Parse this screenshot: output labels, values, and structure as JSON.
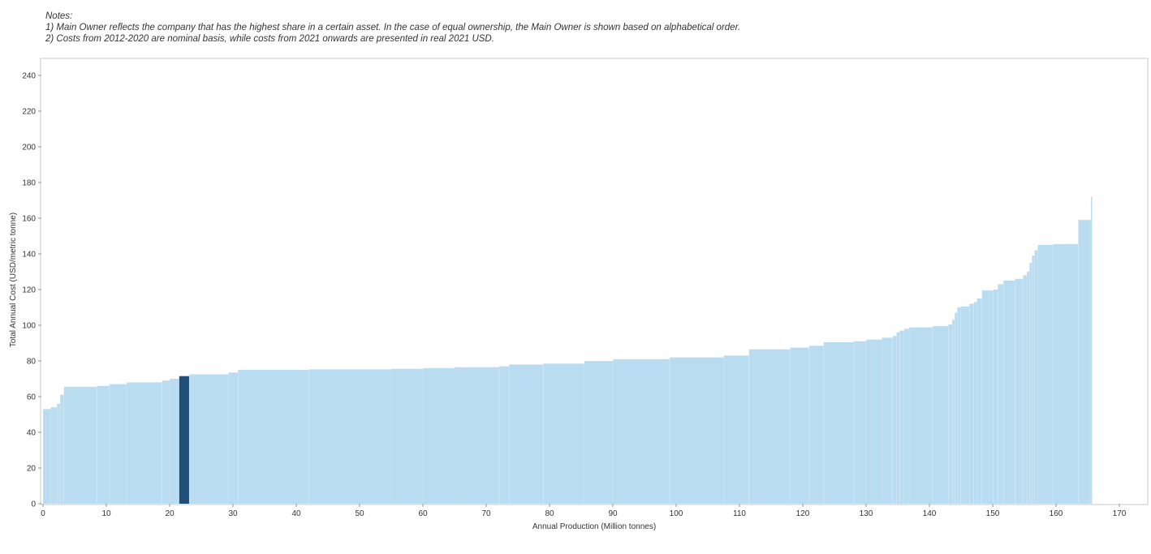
{
  "notes": {
    "heading": "Notes:",
    "line1": "1) Main Owner reflects the company that has the highest share in a certain asset. In the case of equal ownership, the Main Owner is shown based on alphabetical order.",
    "line2": "2) Costs from 2012-2020 are nominal basis, while costs from 2021 onwards are presented in real 2021 USD."
  },
  "chart_data": {
    "type": "bar",
    "subtype": "cost-curve",
    "xlabel": "Annual Production (Million tonnes)",
    "ylabel": "Total Annual Cost (USD/metric tonne)",
    "xlim": [
      0,
      175
    ],
    "ylim": [
      0,
      245
    ],
    "x_ticks": [
      0,
      10,
      20,
      30,
      40,
      50,
      60,
      70,
      80,
      90,
      100,
      110,
      120,
      130,
      140,
      150,
      160,
      170
    ],
    "y_ticks": [
      0,
      20,
      40,
      60,
      80,
      100,
      120,
      140,
      160,
      180,
      200,
      220,
      240
    ],
    "grid": false,
    "colors": {
      "default": "#b9dcf0",
      "highlight": "#1f4e79",
      "frame": "#c8c8c8"
    },
    "segments": [
      {
        "start": 0,
        "end": 1.2,
        "value": 53
      },
      {
        "start": 1.2,
        "end": 2.2,
        "value": 54
      },
      {
        "start": 2.2,
        "end": 2.7,
        "value": 56
      },
      {
        "start": 2.7,
        "end": 3.3,
        "value": 61
      },
      {
        "start": 3.3,
        "end": 8.5,
        "value": 65.5
      },
      {
        "start": 8.5,
        "end": 10.5,
        "value": 66
      },
      {
        "start": 10.5,
        "end": 13.2,
        "value": 67
      },
      {
        "start": 13.2,
        "end": 18.8,
        "value": 68
      },
      {
        "start": 18.8,
        "end": 20.0,
        "value": 69
      },
      {
        "start": 20.0,
        "end": 21.5,
        "value": 70
      },
      {
        "start": 21.5,
        "end": 23.1,
        "value": 71.5,
        "highlight": true
      },
      {
        "start": 23.1,
        "end": 29.3,
        "value": 72.5
      },
      {
        "start": 29.3,
        "end": 30.8,
        "value": 73.5
      },
      {
        "start": 30.8,
        "end": 42.0,
        "value": 75
      },
      {
        "start": 42.0,
        "end": 55.0,
        "value": 75.3
      },
      {
        "start": 55.0,
        "end": 60.0,
        "value": 75.6
      },
      {
        "start": 60.0,
        "end": 65.0,
        "value": 76
      },
      {
        "start": 65.0,
        "end": 72.0,
        "value": 76.5
      },
      {
        "start": 72.0,
        "end": 73.6,
        "value": 77
      },
      {
        "start": 73.6,
        "end": 79.0,
        "value": 78
      },
      {
        "start": 79.0,
        "end": 85.5,
        "value": 78.5
      },
      {
        "start": 85.5,
        "end": 90.0,
        "value": 80
      },
      {
        "start": 90.0,
        "end": 99.0,
        "value": 81
      },
      {
        "start": 99.0,
        "end": 107.5,
        "value": 82
      },
      {
        "start": 107.5,
        "end": 111.5,
        "value": 83
      },
      {
        "start": 111.5,
        "end": 118.0,
        "value": 86.5
      },
      {
        "start": 118.0,
        "end": 121.0,
        "value": 87.5
      },
      {
        "start": 121.0,
        "end": 123.3,
        "value": 88.5
      },
      {
        "start": 123.3,
        "end": 128.0,
        "value": 90.5
      },
      {
        "start": 128.0,
        "end": 130.0,
        "value": 91
      },
      {
        "start": 130.0,
        "end": 132.5,
        "value": 92
      },
      {
        "start": 132.5,
        "end": 134.2,
        "value": 93
      },
      {
        "start": 134.2,
        "end": 134.8,
        "value": 94
      },
      {
        "start": 134.8,
        "end": 135.3,
        "value": 96
      },
      {
        "start": 135.3,
        "end": 136.0,
        "value": 97
      },
      {
        "start": 136.0,
        "end": 136.8,
        "value": 98
      },
      {
        "start": 136.8,
        "end": 140.5,
        "value": 98.8
      },
      {
        "start": 140.5,
        "end": 143.0,
        "value": 99.5
      },
      {
        "start": 143.0,
        "end": 143.6,
        "value": 100.5
      },
      {
        "start": 143.6,
        "end": 144.0,
        "value": 103
      },
      {
        "start": 144.0,
        "end": 144.4,
        "value": 107
      },
      {
        "start": 144.4,
        "end": 144.9,
        "value": 110
      },
      {
        "start": 144.9,
        "end": 146.3,
        "value": 110.5
      },
      {
        "start": 146.3,
        "end": 147.0,
        "value": 112
      },
      {
        "start": 147.0,
        "end": 147.5,
        "value": 113
      },
      {
        "start": 147.5,
        "end": 148.3,
        "value": 115
      },
      {
        "start": 148.3,
        "end": 150.1,
        "value": 119.5
      },
      {
        "start": 150.1,
        "end": 150.8,
        "value": 120
      },
      {
        "start": 150.8,
        "end": 151.7,
        "value": 123
      },
      {
        "start": 151.7,
        "end": 153.5,
        "value": 125
      },
      {
        "start": 153.5,
        "end": 154.8,
        "value": 126
      },
      {
        "start": 154.8,
        "end": 155.4,
        "value": 128
      },
      {
        "start": 155.4,
        "end": 155.8,
        "value": 130
      },
      {
        "start": 155.8,
        "end": 156.2,
        "value": 135
      },
      {
        "start": 156.2,
        "end": 156.6,
        "value": 139
      },
      {
        "start": 156.6,
        "end": 157.1,
        "value": 142
      },
      {
        "start": 157.1,
        "end": 159.5,
        "value": 145
      },
      {
        "start": 159.5,
        "end": 163.5,
        "value": 145.5
      },
      {
        "start": 163.5,
        "end": 165.5,
        "value": 159
      },
      {
        "start": 165.5,
        "end": 165.7,
        "value": 172
      }
    ]
  }
}
